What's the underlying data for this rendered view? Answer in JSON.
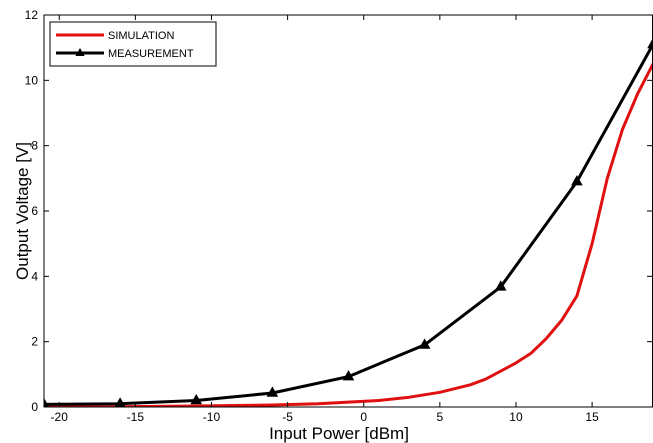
{
  "chart_data": {
    "type": "line",
    "xlabel": "Input Power [dBm]",
    "ylabel": "Output Voltage [V]",
    "xlim": [
      -21,
      19
    ],
    "ylim": [
      0,
      12
    ],
    "xticks": [
      -20,
      -15,
      -10,
      -5,
      0,
      5,
      10,
      15
    ],
    "yticks": [
      0,
      2,
      4,
      6,
      8,
      10,
      12
    ],
    "grid": false,
    "legend_position": "top-left",
    "series": [
      {
        "name": "SIMULATION",
        "color": "#e01010",
        "marker": "none",
        "x": [
          -21,
          -16,
          -11,
          -6,
          -3,
          -1,
          1,
          3,
          5,
          7,
          8,
          9,
          10,
          11,
          12,
          13,
          14,
          15,
          16,
          17,
          18,
          19
        ],
        "y": [
          0.0,
          0.01,
          0.03,
          0.06,
          0.1,
          0.15,
          0.2,
          0.3,
          0.45,
          0.68,
          0.85,
          1.1,
          1.35,
          1.65,
          2.1,
          2.65,
          3.4,
          5.0,
          7.0,
          8.5,
          9.6,
          10.5
        ]
      },
      {
        "name": "MEASUREMENT",
        "color": "#000000",
        "marker": "triangle",
        "x": [
          -21,
          -16,
          -11,
          -6,
          -1,
          4,
          9,
          14,
          19
        ],
        "y": [
          0.08,
          0.1,
          0.2,
          0.43,
          0.93,
          1.9,
          3.68,
          6.9,
          11.1
        ]
      }
    ]
  }
}
